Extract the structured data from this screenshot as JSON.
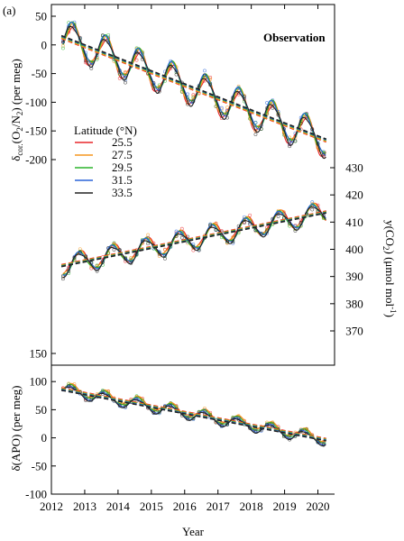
{
  "chart_data": {
    "type": "line",
    "panel_label": "(a)",
    "annotation": "Observation",
    "xlabel": "Year",
    "xlim": [
      2012,
      2020.5
    ],
    "xticks": [
      "2012",
      "2013",
      "2014",
      "2015",
      "2016",
      "2017",
      "2018",
      "2019",
      "2020"
    ],
    "legend_title": "Latitude  (°N)",
    "colors": [
      "#e8262a",
      "#f5961e",
      "#2bb32b",
      "#2a64d8",
      "#222222"
    ],
    "series_names": [
      "25.5",
      "27.5",
      "29.5",
      "31.5",
      "33.5"
    ],
    "panels": [
      {
        "id": "o2n2",
        "ylabel": "δcor.(O2/N2) (per meg)",
        "ylabel_parts": [
          "δ",
          "cor.",
          "(O",
          "2",
          "/N",
          "2",
          ")  (per meg)"
        ],
        "axis_side": "left",
        "ylim": [
          -215,
          55
        ],
        "yticks": [
          "50",
          "0",
          "-50",
          "-100",
          "-150",
          "-200"
        ],
        "ytick_values": [
          50,
          0,
          -50,
          -100,
          -150,
          -200
        ],
        "mean_start": 2012.0,
        "trend_start": 21,
        "trend_slope": -22.7,
        "amplitude": 28,
        "phase": 2012.65,
        "series_offsets": [
          -2,
          0,
          1,
          2,
          -1
        ],
        "trend_offsets": [
          -3,
          -2,
          0,
          1,
          2
        ],
        "series": [
          {
            "name": "25.5",
            "x": [
              2012.3,
              2012.7,
              2013.0,
              2013.3,
              2013.7,
              2014.0,
              2014.3,
              2014.7,
              2015.0,
              2015.3,
              2015.7,
              2016.0,
              2016.3,
              2016.7,
              2017.0,
              2017.3,
              2017.7,
              2018.0,
              2018.3,
              2018.7,
              2019.0,
              2019.3,
              2019.7,
              2020.0,
              2020.2
            ],
            "y": [
              -5,
              33,
              10,
              -30,
              8,
              -15,
              -55,
              -20,
              -48,
              -85,
              -50,
              -75,
              -110,
              -78,
              -103,
              -135,
              -100,
              -125,
              -155,
              -120,
              -148,
              -180,
              -140,
              -170,
              -205
            ]
          }
        ]
      },
      {
        "id": "co2",
        "ylabel": "y(CO2) (μmol mol-1)",
        "ylabel_parts": [
          "y(CO",
          "2",
          ")  (μmol mol",
          "-1",
          ")"
        ],
        "axis_side": "right",
        "ylim": [
          368,
          434
        ],
        "yticks": [
          "430",
          "420",
          "410",
          "400",
          "390",
          "380",
          "370"
        ],
        "ytick_values": [
          430,
          420,
          410,
          400,
          390,
          380,
          370
        ],
        "trend_start": 393.2,
        "trend_slope": 2.48,
        "amplitude": 3.6,
        "phase": 2012.85,
        "series_offsets": [
          0.3,
          0.1,
          -0.2,
          0,
          -0.3
        ],
        "trend_offsets": [
          0.4,
          0.2,
          0,
          -0.2,
          -0.3
        ],
        "series": [
          {
            "name": "25.5",
            "x": [
              2012.3,
              2012.7,
              2013.0,
              2013.3,
              2013.7,
              2014.0,
              2014.3,
              2014.7,
              2015.0,
              2015.3,
              2015.7,
              2016.0,
              2016.3,
              2016.7,
              2017.0,
              2017.3,
              2017.7,
              2018.0,
              2018.3,
              2018.7,
              2019.0,
              2019.3,
              2019.7,
              2020.0,
              2020.2
            ],
            "y": [
              396,
              391,
              394,
              398,
              393,
              396,
              400,
              396,
              399,
              403,
              398,
              401,
              406,
              401,
              404,
              409,
              404,
              407,
              411,
              406,
              409,
              413,
              408,
              412,
              416
            ]
          }
        ]
      },
      {
        "id": "apo",
        "ylabel": "δ(APO) (per meg)",
        "ylabel_parts": [
          "δ(APO)  (per meg)"
        ],
        "axis_side": "left",
        "ylim": [
          -100,
          150
        ],
        "yticks": [
          "150",
          "100",
          "50",
          "0",
          "-50",
          "-100"
        ],
        "ytick_values": [
          150,
          100,
          50,
          0,
          -50,
          -100
        ],
        "trend_start": 90,
        "trend_slope": -11.3,
        "amplitude": 9,
        "phase": 2012.6,
        "series_offsets": [
          2,
          3,
          1,
          -1,
          -2
        ],
        "trend_offsets": [
          2,
          1,
          0,
          -1,
          -2
        ],
        "series": [
          {
            "name": "25.5",
            "x": [
              2012.3,
              2012.7,
              2013.0,
              2013.3,
              2013.7,
              2014.0,
              2014.3,
              2014.7,
              2015.0,
              2015.3,
              2015.7,
              2016.0,
              2016.3,
              2016.7,
              2017.0,
              2017.3,
              2017.7,
              2018.0,
              2018.3,
              2018.7,
              2019.0,
              2019.3,
              2019.7,
              2020.0,
              2020.2
            ],
            "y": [
              80,
              92,
              78,
              70,
              74,
              65,
              62,
              68,
              55,
              48,
              55,
              47,
              38,
              42,
              33,
              27,
              30,
              20,
              12,
              18,
              8,
              0,
              6,
              -3,
              -12
            ]
          }
        ]
      }
    ]
  }
}
